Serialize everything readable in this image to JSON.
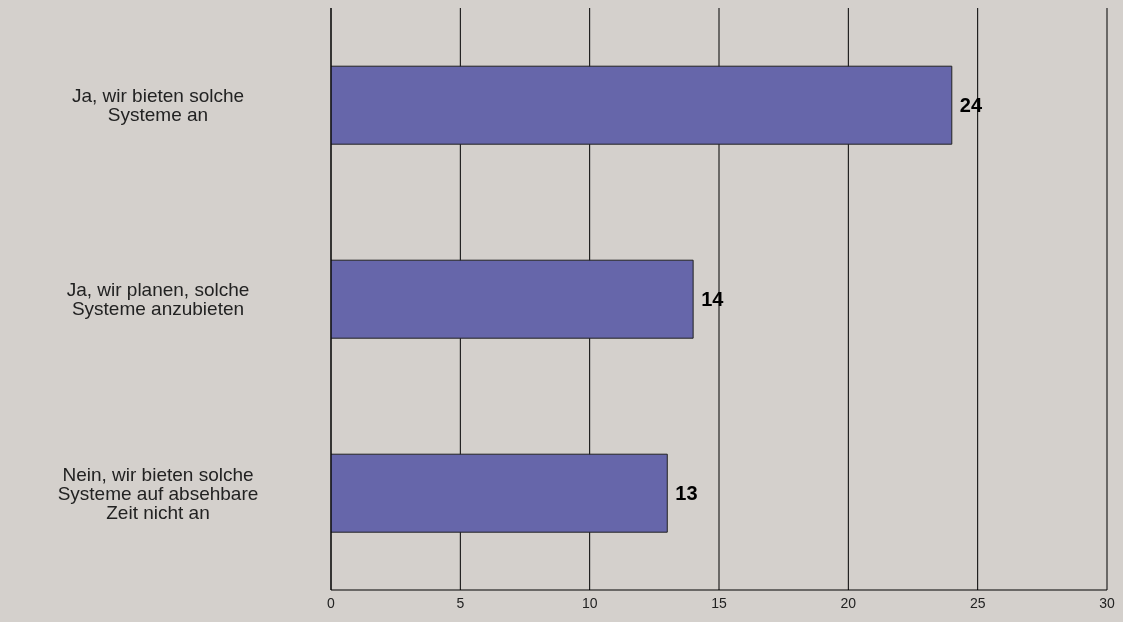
{
  "chart_data": {
    "type": "bar",
    "orientation": "horizontal",
    "categories": [
      "Ja, wir bieten solche Systeme an",
      "Ja, wir planen, solche Systeme anzubieten",
      "Nein, wir bieten solche Systeme auf absehbare Zeit nicht an"
    ],
    "values": [
      24,
      14,
      13
    ],
    "color": "#6666aa",
    "xlim": [
      0,
      30
    ],
    "xticks": [
      0,
      5,
      10,
      15,
      20,
      25,
      30
    ],
    "grid": "x",
    "data_labels": true
  }
}
